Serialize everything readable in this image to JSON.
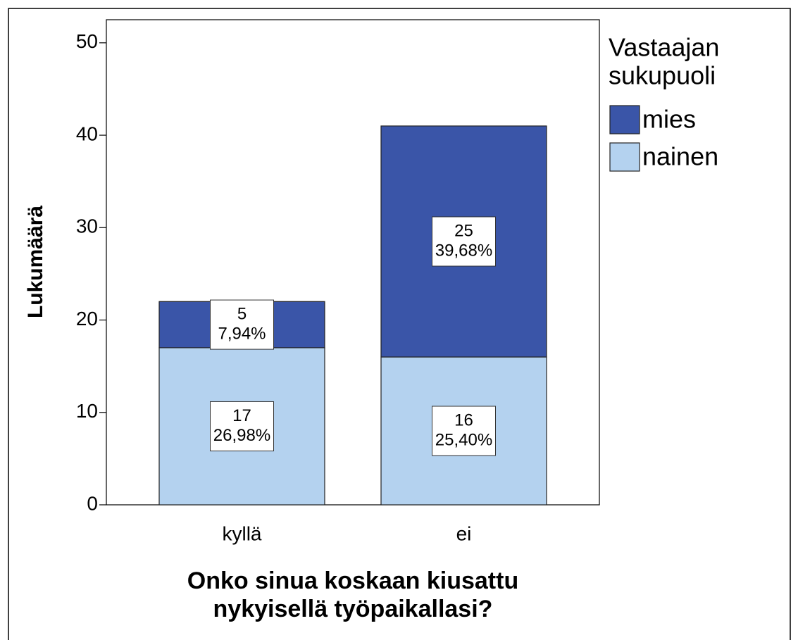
{
  "chart_data": {
    "type": "stacked_bar",
    "y_label": "Lukumäärä",
    "x_label_lines": [
      "Onko sinua koskaan kiusattu",
      "nykyisellä työpaikallasi?"
    ],
    "legend_title_lines": [
      "Vastaajan",
      "sukupuoli"
    ],
    "categories": [
      "kyllä",
      "ei"
    ],
    "series": [
      {
        "name": "mies",
        "color": "#3a55a8",
        "values": [
          5,
          25
        ],
        "percentages": [
          7.94,
          39.68
        ],
        "percent_labels": [
          "7,94%",
          "39,68%"
        ]
      },
      {
        "name": "nainen",
        "color": "#b4d2ef",
        "values": [
          17,
          16
        ],
        "percentages": [
          26.98,
          25.4
        ],
        "percent_labels": [
          "26,98%",
          "25,40%"
        ]
      }
    ],
    "ylim": [
      0,
      52.5
    ],
    "yticks": [
      0,
      10,
      20,
      30,
      40,
      50
    ],
    "legend": "right"
  }
}
